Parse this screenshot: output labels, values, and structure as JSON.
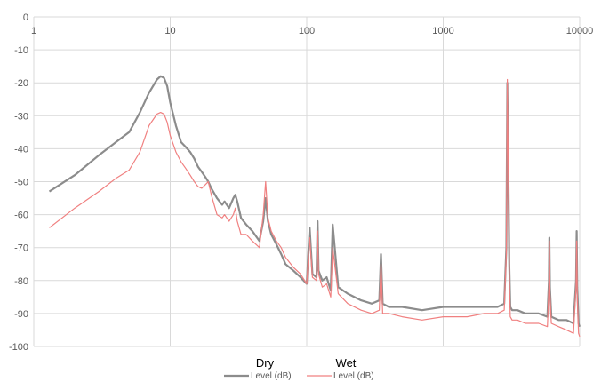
{
  "chart_data": {
    "type": "line",
    "x_scale": "log",
    "xlim": [
      1,
      10000
    ],
    "ylim": [
      -100,
      0
    ],
    "x_ticks": [
      "1",
      "10",
      "100",
      "1000",
      "10000"
    ],
    "y_ticks": [
      "0",
      "-10",
      "-20",
      "-30",
      "-40",
      "-50",
      "-60",
      "-70",
      "-80",
      "-90",
      "-100"
    ],
    "grid": true,
    "legend_placement": "bottom",
    "series": [
      {
        "group": "Dry",
        "name": "Level (dB)",
        "color": "#8c8c8c",
        "x": [
          1.3,
          2,
          3,
          4,
          5,
          6,
          7,
          8,
          8.5,
          9,
          9.5,
          10,
          11,
          12,
          13,
          14,
          15,
          16,
          17,
          18,
          19,
          20,
          22,
          24,
          25,
          27,
          29,
          30,
          31,
          33,
          36,
          40,
          45,
          48,
          50,
          52,
          55,
          60,
          65,
          70,
          80,
          90,
          100,
          105,
          110,
          118,
          120,
          122,
          130,
          140,
          150,
          155,
          170,
          200,
          250,
          300,
          340,
          350,
          360,
          400,
          500,
          700,
          1000,
          1500,
          2000,
          2500,
          2800,
          2900,
          2950,
          3000,
          3050,
          3100,
          3200,
          3500,
          4000,
          5000,
          5800,
          5950,
          6000,
          6050,
          6200,
          7000,
          8000,
          9000,
          9400,
          9500,
          9600,
          9800,
          10000
        ],
        "values": [
          -53,
          -48,
          -42,
          -38,
          -35,
          -29,
          -23,
          -19,
          -18,
          -18.5,
          -21,
          -26,
          -33,
          -38,
          -39.5,
          -41,
          -43,
          -45.5,
          -47,
          -48.5,
          -50,
          -52,
          -55,
          -57,
          -56,
          -58,
          -55,
          -54,
          -56,
          -61,
          -63,
          -65,
          -68,
          -62,
          -55,
          -62,
          -66,
          -69,
          -72,
          -75,
          -77,
          -79,
          -81,
          -64,
          -78,
          -79,
          -62,
          -77,
          -80,
          -79,
          -83,
          -63,
          -82,
          -84,
          -86,
          -87,
          -86,
          -72,
          -87,
          -88,
          -88,
          -89,
          -88,
          -88,
          -88,
          -88,
          -87,
          -70,
          -20,
          -45,
          -75,
          -88,
          -89,
          -89,
          -90,
          -90,
          -91,
          -80,
          -67,
          -82,
          -91,
          -92,
          -92,
          -93,
          -80,
          -65,
          -82,
          -93,
          -94
        ]
      },
      {
        "group": "Wet",
        "name": "Level (dB)",
        "color": "#f08080",
        "x": [
          1.3,
          2,
          3,
          4,
          5,
          6,
          7,
          8,
          8.5,
          9,
          9.5,
          10,
          11,
          12,
          13,
          14,
          15,
          16,
          17,
          18,
          19,
          20,
          22,
          24,
          25,
          27,
          29,
          30,
          31,
          33,
          36,
          40,
          45,
          48,
          50,
          52,
          55,
          60,
          65,
          70,
          80,
          90,
          100,
          105,
          110,
          118,
          120,
          122,
          130,
          140,
          150,
          155,
          170,
          200,
          250,
          300,
          340,
          350,
          360,
          400,
          500,
          700,
          1000,
          1500,
          2000,
          2500,
          2800,
          2900,
          2950,
          3000,
          3050,
          3100,
          3200,
          3500,
          4000,
          5000,
          5800,
          5950,
          6000,
          6050,
          6200,
          7000,
          8000,
          9000,
          9400,
          9500,
          9600,
          9800,
          10000
        ],
        "values": [
          -64,
          -58,
          -53,
          -49,
          -46.5,
          -41,
          -33,
          -29.5,
          -29,
          -29.5,
          -32,
          -36,
          -41,
          -44,
          -46,
          -48,
          -50,
          -51.5,
          -52,
          -51,
          -50,
          -54,
          -60,
          -61,
          -60,
          -62,
          -60,
          -58,
          -62,
          -66,
          -66,
          -68,
          -70,
          -60,
          -50,
          -61,
          -65,
          -68,
          -70,
          -73,
          -76,
          -78,
          -81,
          -67,
          -79,
          -80,
          -65,
          -78,
          -82,
          -81,
          -85,
          -70,
          -84,
          -87,
          -89,
          -90,
          -89,
          -75,
          -90,
          -90,
          -91,
          -92,
          -91,
          -91,
          -90,
          -90,
          -89,
          -72,
          -19,
          -48,
          -78,
          -91,
          -92,
          -92,
          -93,
          -93,
          -94,
          -82,
          -68,
          -84,
          -93,
          -94,
          -95,
          -96,
          -82,
          -68,
          -85,
          -96,
          -97
        ]
      }
    ]
  }
}
